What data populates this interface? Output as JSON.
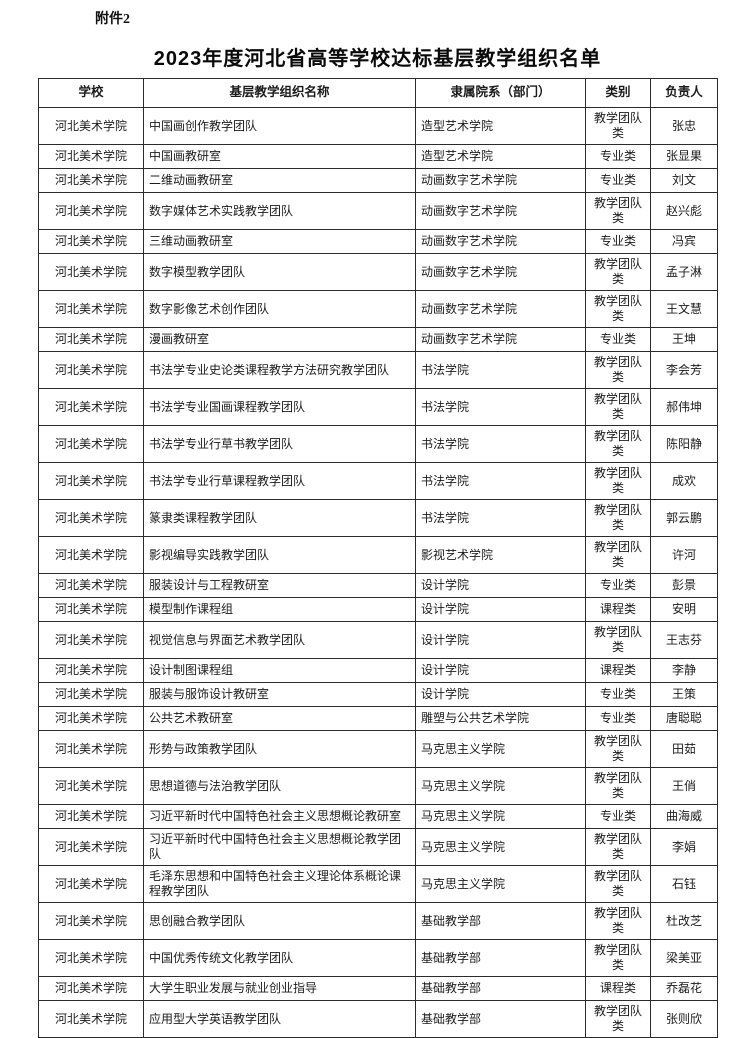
{
  "page": {
    "attachment_label": "附件2",
    "title": "2023年度河北省高等学校达标基层教学组织名单"
  },
  "table": {
    "headers": [
      "学校",
      "基层教学组织名称",
      "隶属院系（部门）",
      "类别",
      "负责人"
    ],
    "rows": [
      [
        "河北美术学院",
        "中国画创作教学团队",
        "造型艺术学院",
        "教学团队类",
        "张忠"
      ],
      [
        "河北美术学院",
        "中国画教研室",
        "造型艺术学院",
        "专业类",
        "张显果"
      ],
      [
        "河北美术学院",
        "二维动画教研室",
        "动画数字艺术学院",
        "专业类",
        "刘文"
      ],
      [
        "河北美术学院",
        "数字媒体艺术实践教学团队",
        "动画数字艺术学院",
        "教学团队类",
        "赵兴彪"
      ],
      [
        "河北美术学院",
        "三维动画教研室",
        "动画数字艺术学院",
        "专业类",
        "冯宾"
      ],
      [
        "河北美术学院",
        "数字模型教学团队",
        "动画数字艺术学院",
        "教学团队类",
        "孟子淋"
      ],
      [
        "河北美术学院",
        "数字影像艺术创作团队",
        "动画数字艺术学院",
        "教学团队类",
        "王文慧"
      ],
      [
        "河北美术学院",
        "漫画教研室",
        "动画数字艺术学院",
        "专业类",
        "王坤"
      ],
      [
        "河北美术学院",
        "书法学专业史论类课程教学方法研究教学团队",
        "书法学院",
        "教学团队类",
        "李会芳"
      ],
      [
        "河北美术学院",
        "书法学专业国画课程教学团队",
        "书法学院",
        "教学团队类",
        "郝伟坤"
      ],
      [
        "河北美术学院",
        "书法学专业行草书教学团队",
        "书法学院",
        "教学团队类",
        "陈阳静"
      ],
      [
        "河北美术学院",
        "书法学专业行草课程教学团队",
        "书法学院",
        "教学团队类",
        "成欢"
      ],
      [
        "河北美术学院",
        "篆隶类课程教学团队",
        "书法学院",
        "教学团队类",
        "郭云鹏"
      ],
      [
        "河北美术学院",
        "影视编导实践教学团队",
        "影视艺术学院",
        "教学团队类",
        "许河"
      ],
      [
        "河北美术学院",
        "服装设计与工程教研室",
        "设计学院",
        "专业类",
        "彭景"
      ],
      [
        "河北美术学院",
        "模型制作课程组",
        "设计学院",
        "课程类",
        "安明"
      ],
      [
        "河北美术学院",
        "视觉信息与界面艺术教学团队",
        "设计学院",
        "教学团队类",
        "王志芬"
      ],
      [
        "河北美术学院",
        "设计制图课程组",
        "设计学院",
        "课程类",
        "李静"
      ],
      [
        "河北美术学院",
        "服装与服饰设计教研室",
        "设计学院",
        "专业类",
        "王策"
      ],
      [
        "河北美术学院",
        "公共艺术教研室",
        "雕塑与公共艺术学院",
        "专业类",
        "唐聪聪"
      ],
      [
        "河北美术学院",
        "形势与政策教学团队",
        "马克思主义学院",
        "教学团队类",
        "田茹"
      ],
      [
        "河北美术学院",
        "思想道德与法治教学团队",
        "马克思主义学院",
        "教学团队类",
        "王俏"
      ],
      [
        "河北美术学院",
        "习近平新时代中国特色社会主义思想概论教研室",
        "马克思主义学院",
        "专业类",
        "曲海威"
      ],
      [
        "河北美术学院",
        "习近平新时代中国特色社会主义思想概论教学团队",
        "马克思主义学院",
        "教学团队类",
        "李娟"
      ],
      [
        "河北美术学院",
        "毛泽东思想和中国特色社会主义理论体系概论课程教学团队",
        "马克思主义学院",
        "教学团队类",
        "石钰"
      ],
      [
        "河北美术学院",
        "思创融合教学团队",
        "基础教学部",
        "教学团队类",
        "杜改芝"
      ],
      [
        "河北美术学院",
        "中国优秀传统文化教学团队",
        "基础教学部",
        "教学团队类",
        "梁美亚"
      ],
      [
        "河北美术学院",
        "大学生职业发展与就业创业指导",
        "基础教学部",
        "课程类",
        "乔磊花"
      ],
      [
        "河北美术学院",
        "应用型大学英语教学团队",
        "基础教学部",
        "教学团队类",
        "张则欣"
      ]
    ]
  }
}
